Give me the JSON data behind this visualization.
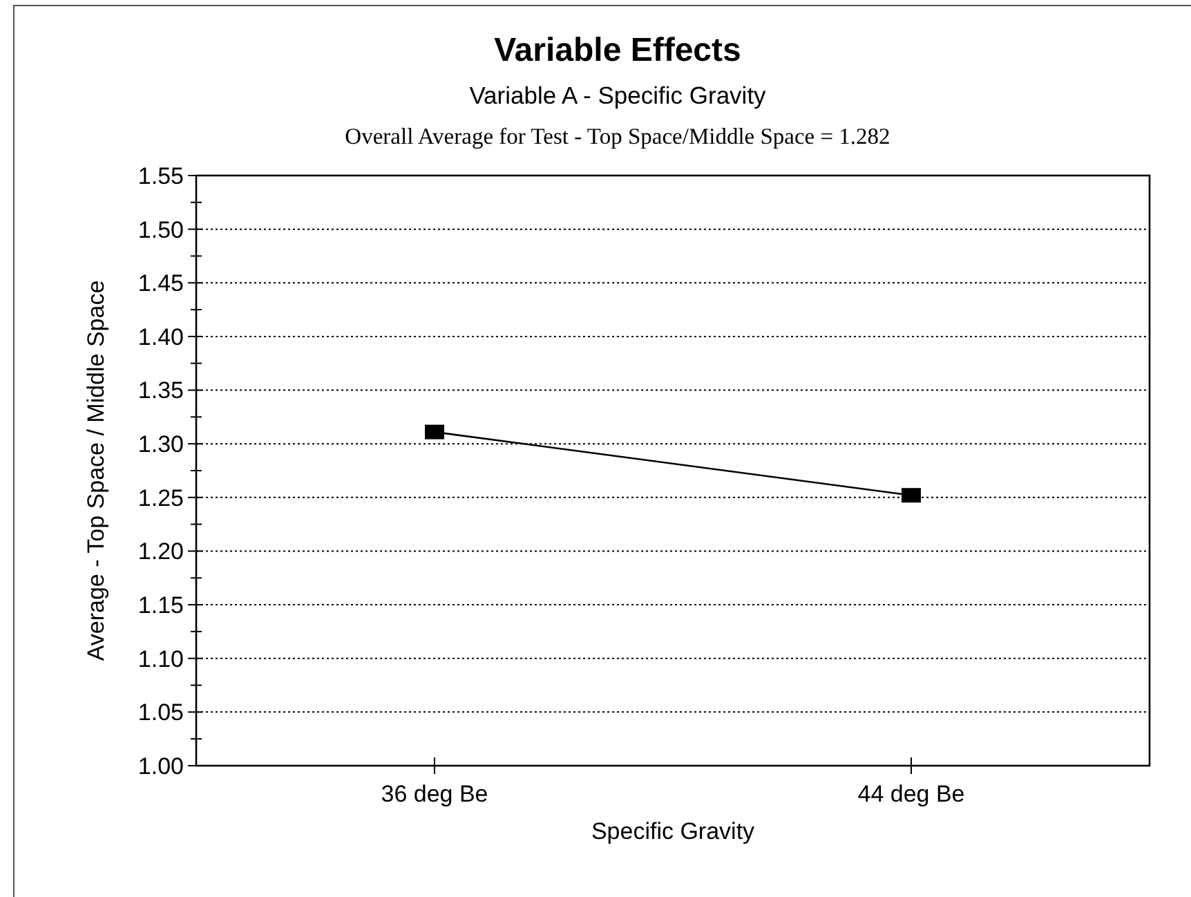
{
  "chart_data": {
    "type": "line",
    "title": "Variable Effects",
    "subtitle": "Variable A - Specific Gravity",
    "annotations": [
      "Overall Average for Test - Top Space/Middle Space = 1.282"
    ],
    "xlabel": "Specific Gravity",
    "ylabel": "Average - Top Space / Middle Space",
    "categories": [
      "36 deg Be",
      "44 deg Be"
    ],
    "series": [
      {
        "color": "#000000",
        "values": [
          1.311,
          1.252
        ]
      }
    ],
    "ylim": [
      1.0,
      1.55
    ],
    "yticks": [
      {
        "value": 1.0,
        "label": "1.00"
      },
      {
        "value": 1.025,
        "label": null
      },
      1.05,
      {
        "value": 1.075,
        "label": null
      },
      {
        "value": 1.1,
        "label": "1.10"
      },
      {
        "value": 1.125,
        "label": null
      },
      1.15,
      {
        "value": 1.175,
        "label": null
      },
      {
        "value": 1.2,
        "label": "1.20"
      },
      {
        "value": 1.225,
        "label": null
      },
      1.25,
      {
        "value": 1.275,
        "label": null
      },
      {
        "value": 1.3,
        "label": "1.30"
      },
      {
        "value": 1.325,
        "label": null
      },
      1.35,
      {
        "value": 1.375,
        "label": null
      },
      {
        "value": 1.4,
        "label": "1.40"
      },
      {
        "value": 1.425,
        "label": null
      },
      1.45,
      {
        "value": 1.475,
        "label": null
      },
      {
        "value": 1.5,
        "label": "1.50"
      },
      {
        "value": 1.525,
        "label": null
      },
      1.55
    ],
    "grid": "y",
    "marker": "square",
    "line_style": "solid"
  }
}
